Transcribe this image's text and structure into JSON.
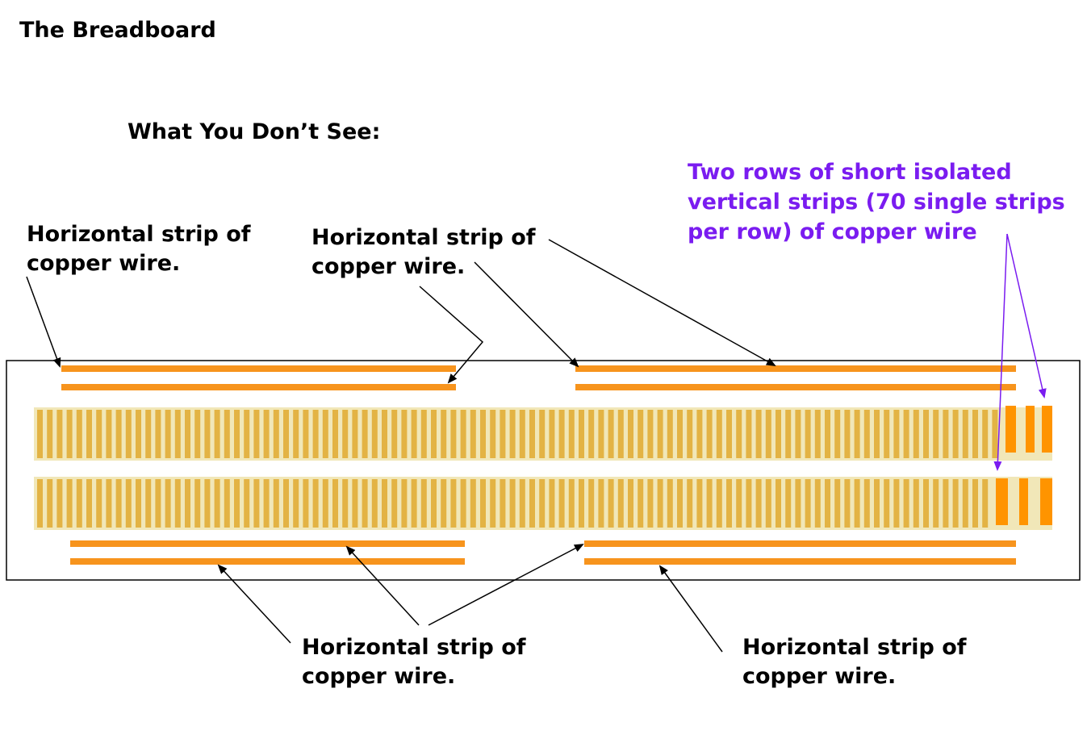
{
  "title": "The Breadboard",
  "subtitle": "What You Don’t See:",
  "labels": {
    "top_left": [
      "Horizontal strip of",
      "copper wire."
    ],
    "top_center": [
      "Horizontal strip of",
      "copper wire."
    ],
    "bottom_center": [
      "Horizontal strip of",
      "copper wire."
    ],
    "bottom_right": [
      "Horizontal strip of",
      "copper wire."
    ],
    "vertical_strips": [
      "Two rows of short isolated",
      "vertical strips (70 single strips",
      "per row) of copper wire"
    ]
  },
  "colors": {
    "copper": "#f7941d",
    "strip_gold": "#e3b344",
    "strip_background": "#f1e7b8",
    "vertical_highlight": "#ff9400",
    "annotation_purple": "#7a1cf0",
    "text": "#000000"
  }
}
